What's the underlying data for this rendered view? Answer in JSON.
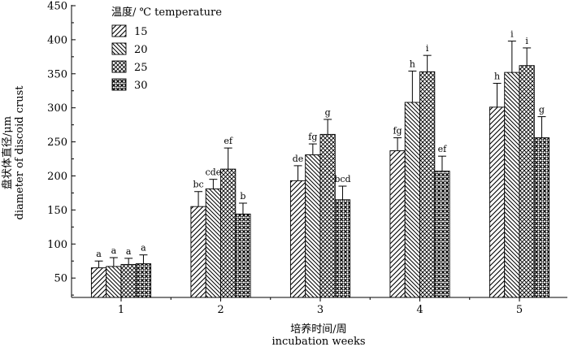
{
  "chart_data": {
    "type": "bar",
    "xlabel_cn": "培养时间/周",
    "xlabel_en": "incubation weeks",
    "ylabel_cn": "盘状体直径/μm",
    "ylabel_en": "diameter of discoid crust",
    "legend_title": "温度/ ℃ temperature",
    "legend_position": "top-left",
    "ylim": [
      0,
      450
    ],
    "y_ticks": [
      50,
      100,
      150,
      200,
      250,
      300,
      350,
      400,
      450
    ],
    "categories": [
      "1",
      "2",
      "3",
      "4",
      "5"
    ],
    "series": [
      {
        "name": "15",
        "pattern": "diag-right",
        "values": [
          65,
          155,
          193,
          237,
          301
        ],
        "errors": [
          10,
          22,
          22,
          19,
          35
        ],
        "letters": [
          "a",
          "bc",
          "de",
          "fg",
          "h"
        ]
      },
      {
        "name": "20",
        "pattern": "diag-left",
        "values": [
          67,
          181,
          231,
          308,
          352
        ],
        "errors": [
          13,
          14,
          16,
          46,
          46
        ],
        "letters": [
          "a",
          "cde",
          "fg",
          "h",
          "i"
        ]
      },
      {
        "name": "25",
        "pattern": "crosshatch",
        "values": [
          70,
          210,
          261,
          353,
          362
        ],
        "errors": [
          9,
          31,
          22,
          24,
          26
        ],
        "letters": [
          "a",
          "ef",
          "g",
          "i",
          "i"
        ]
      },
      {
        "name": "30",
        "pattern": "dots",
        "values": [
          71,
          144,
          165,
          207,
          256
        ],
        "errors": [
          13,
          16,
          20,
          22,
          31
        ],
        "letters": [
          "a",
          "b",
          "bcd",
          "ef",
          "g"
        ]
      }
    ]
  }
}
